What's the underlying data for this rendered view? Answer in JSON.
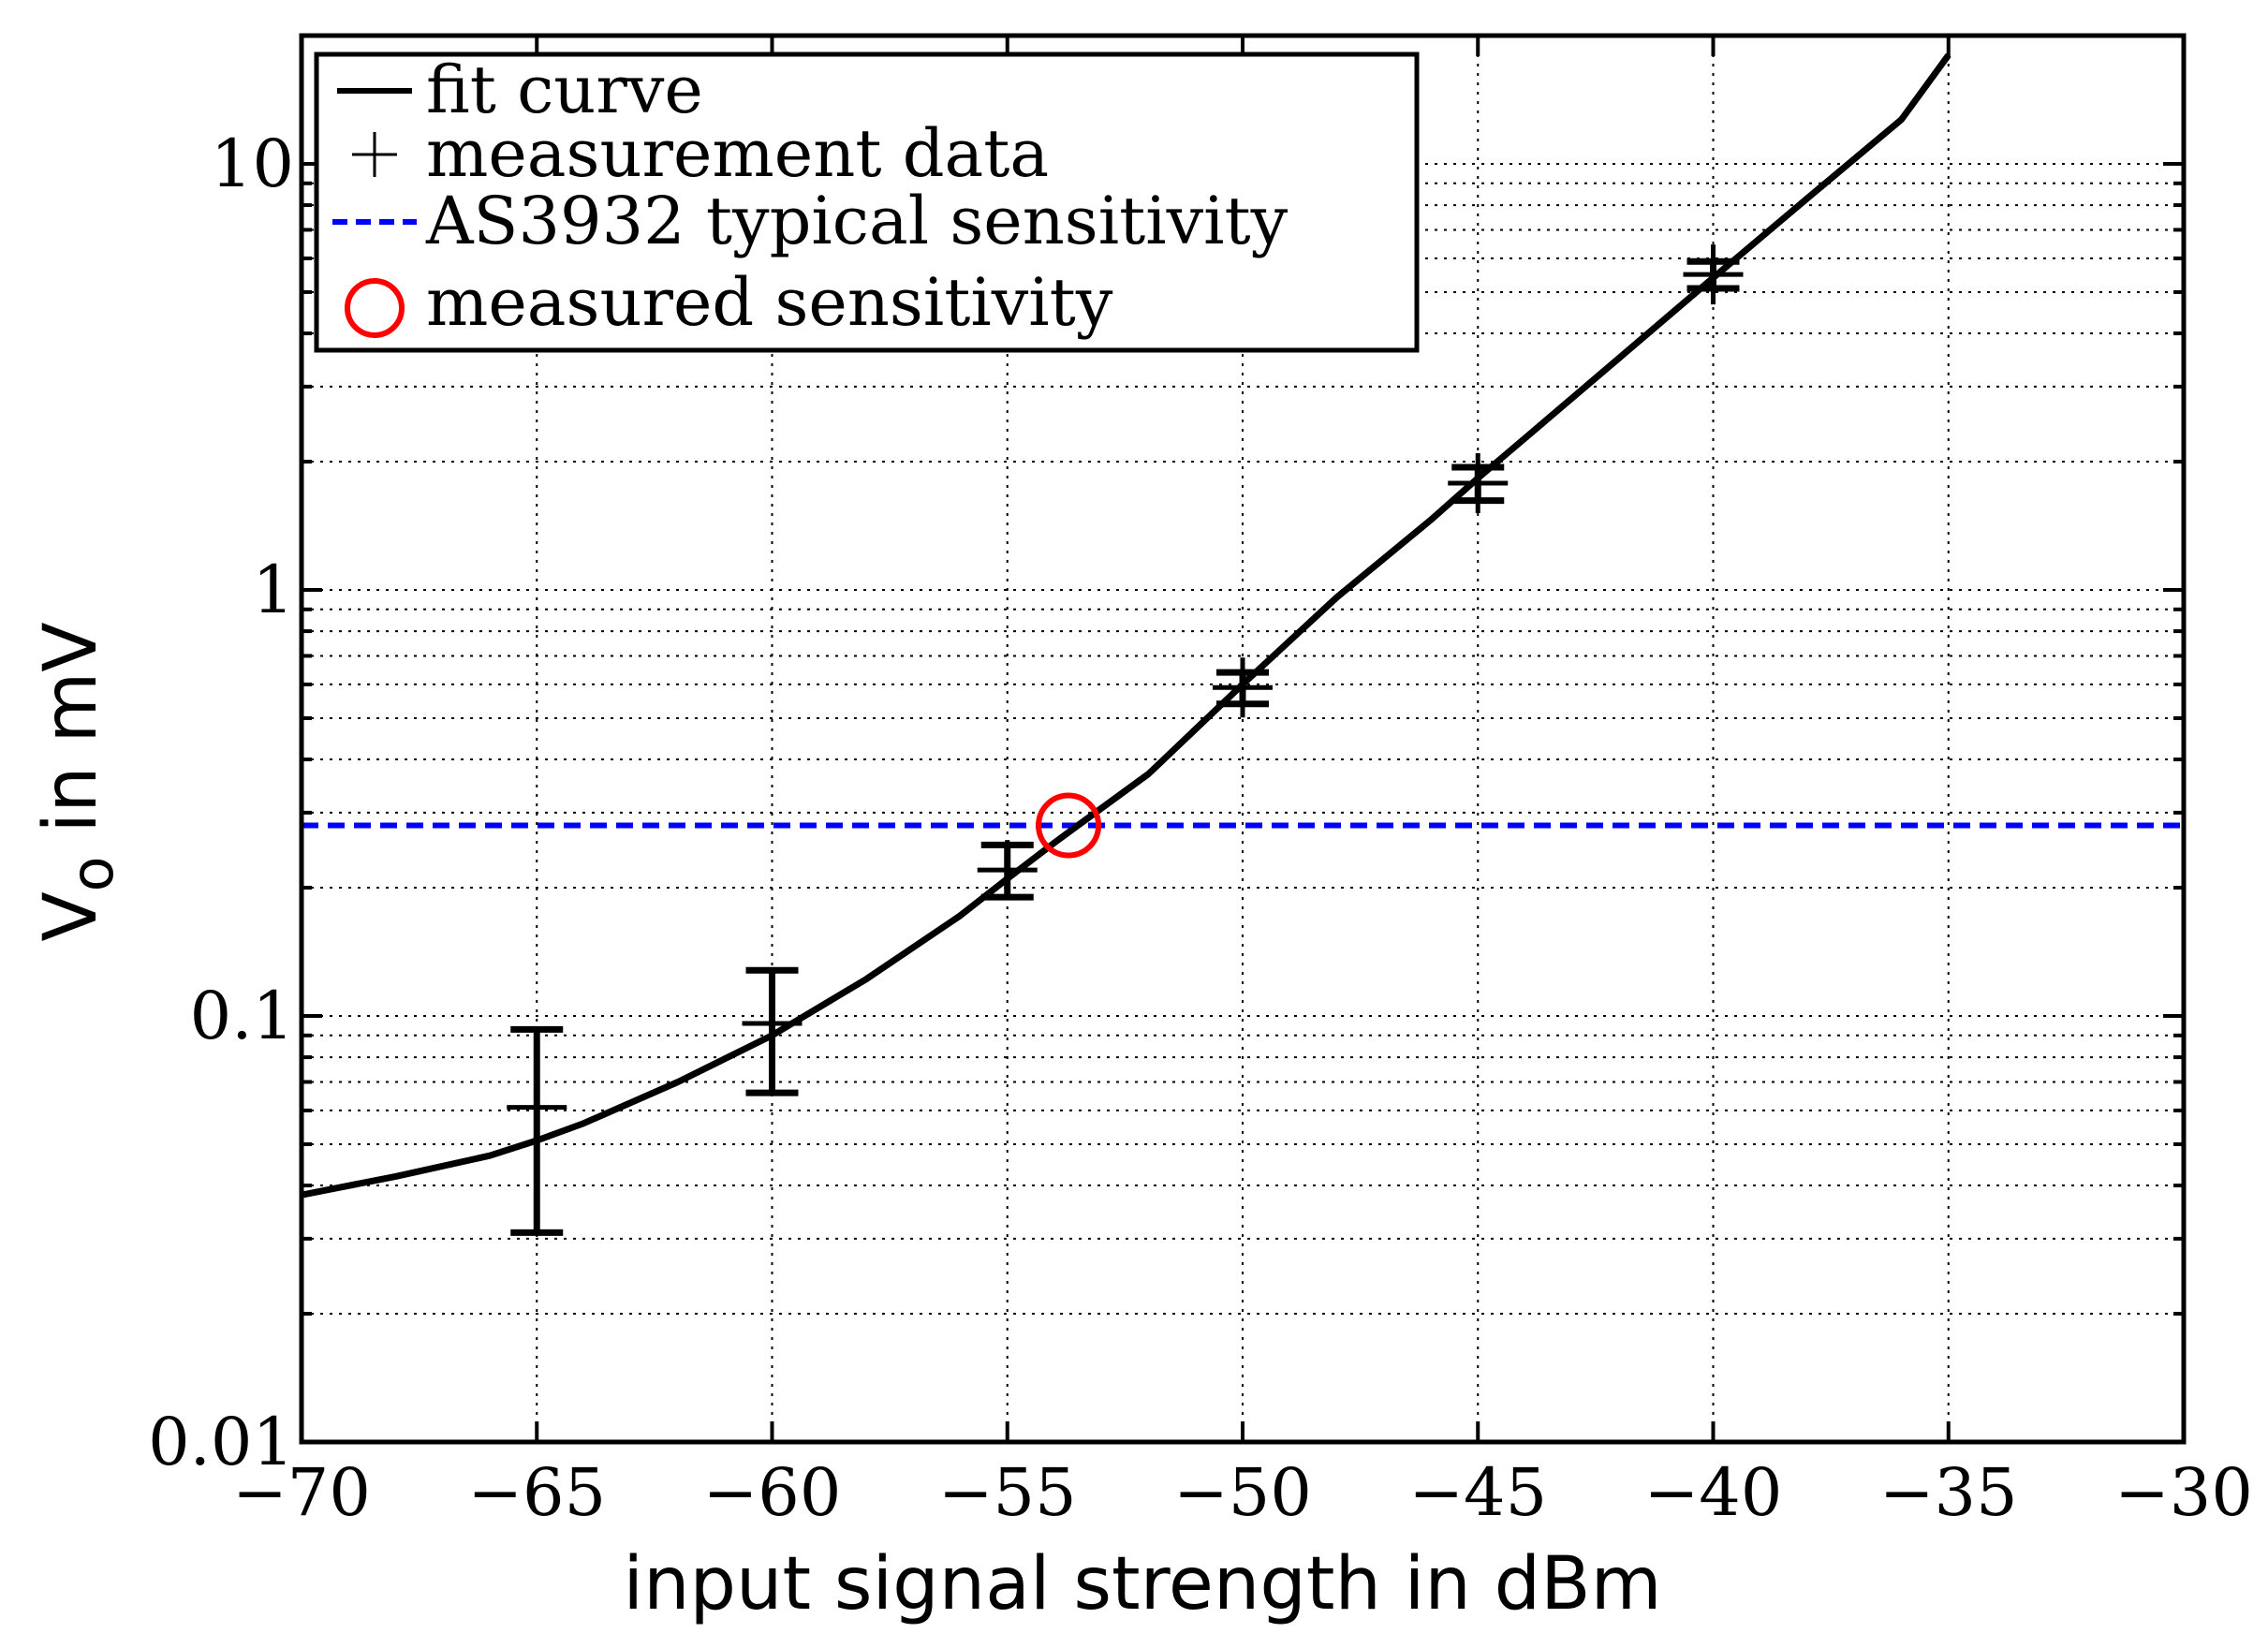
{
  "chart_data": {
    "type": "line",
    "title": "",
    "xlabel": "input signal strength in dBm",
    "ylabel_main": "V",
    "ylabel_sub": "o",
    "ylabel_rest": " in mV",
    "xlim": [
      -70,
      -30
    ],
    "ylim": [
      0.01,
      20
    ],
    "yscale": "log",
    "grid": true,
    "x_ticks": [
      -70,
      -65,
      -60,
      -55,
      -50,
      -45,
      -40,
      -35,
      -30
    ],
    "x_tick_labels": [
      "−70",
      "−65",
      "−60",
      "−55",
      "−50",
      "−45",
      "−40",
      "−35",
      "−30"
    ],
    "y_ticks": [
      0.01,
      0.1,
      1,
      10
    ],
    "y_tick_labels": [
      "0.01",
      "0.1",
      "1",
      "10"
    ],
    "legend_position": "top-left",
    "series": [
      {
        "name": "fit curve",
        "style": "solid",
        "color": "#000000",
        "x": [
          -70,
          -68,
          -66,
          -65,
          -64,
          -62,
          -60,
          -58,
          -56,
          -55,
          -54,
          -53.5,
          -52,
          -50,
          -48,
          -46,
          -45,
          -44,
          -42,
          -40,
          -38,
          -36,
          -35
        ],
        "y": [
          0.038,
          0.042,
          0.047,
          0.051,
          0.056,
          0.07,
          0.09,
          0.122,
          0.172,
          0.21,
          0.255,
          0.28,
          0.37,
          0.6,
          0.96,
          1.46,
          1.83,
          2.27,
          3.5,
          5.4,
          8.3,
          12.7,
          18.0
        ]
      },
      {
        "name": "measurement data",
        "style": "plus",
        "color": "#000000",
        "x": [
          -65,
          -60,
          -55,
          -50,
          -45,
          -40
        ],
        "y": [
          0.061,
          0.096,
          0.22,
          0.59,
          1.78,
          5.5
        ],
        "err_low": [
          0.031,
          0.066,
          0.19,
          0.54,
          1.62,
          5.1
        ],
        "err_high": [
          0.093,
          0.128,
          0.252,
          0.64,
          1.94,
          5.9
        ]
      },
      {
        "name": "AS3932 typical sensitivity",
        "style": "dashed",
        "color": "#0000ff",
        "y_const": 0.28
      },
      {
        "name": "measured sensitivity",
        "style": "circle",
        "color": "#ff0000",
        "x": [
          -53.7
        ],
        "y": [
          0.28
        ]
      }
    ]
  }
}
